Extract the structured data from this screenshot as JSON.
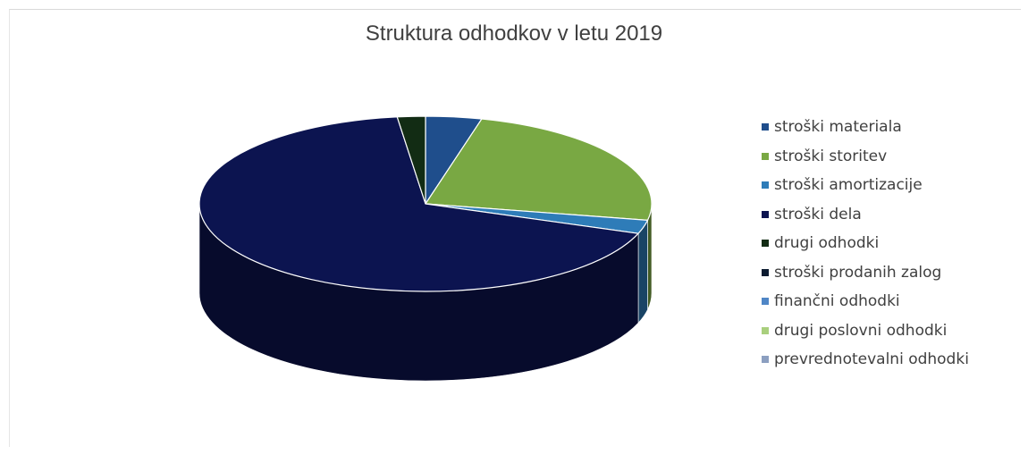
{
  "chart_data": {
    "type": "pie",
    "style": "3d",
    "title": "Struktura odhodkov v letu 2019",
    "legend_position": "right",
    "series": [
      {
        "name": "stroški materiala",
        "value": 4.0,
        "color": "#1f4e8c"
      },
      {
        "name": "stroški storitev",
        "value": 24.0,
        "color": "#79a843"
      },
      {
        "name": "stroški amortizacije",
        "value": 2.5,
        "color": "#2e7cb8"
      },
      {
        "name": "stroški dela",
        "value": 67.5,
        "color": "#0c1450"
      },
      {
        "name": "drugi odhodki",
        "value": 2.0,
        "color": "#122c14"
      },
      {
        "name": "stroški prodanih zalog",
        "value": 0,
        "color": "#0c1b30"
      },
      {
        "name": "finančni odhodki",
        "value": 0,
        "color": "#4f86c6"
      },
      {
        "name": "drugi poslovni odhodki",
        "value": 0,
        "color": "#a9cf7d"
      },
      {
        "name": "prevrednotevalni odhodki",
        "value": 0,
        "color": "#8c9fc0"
      }
    ]
  }
}
